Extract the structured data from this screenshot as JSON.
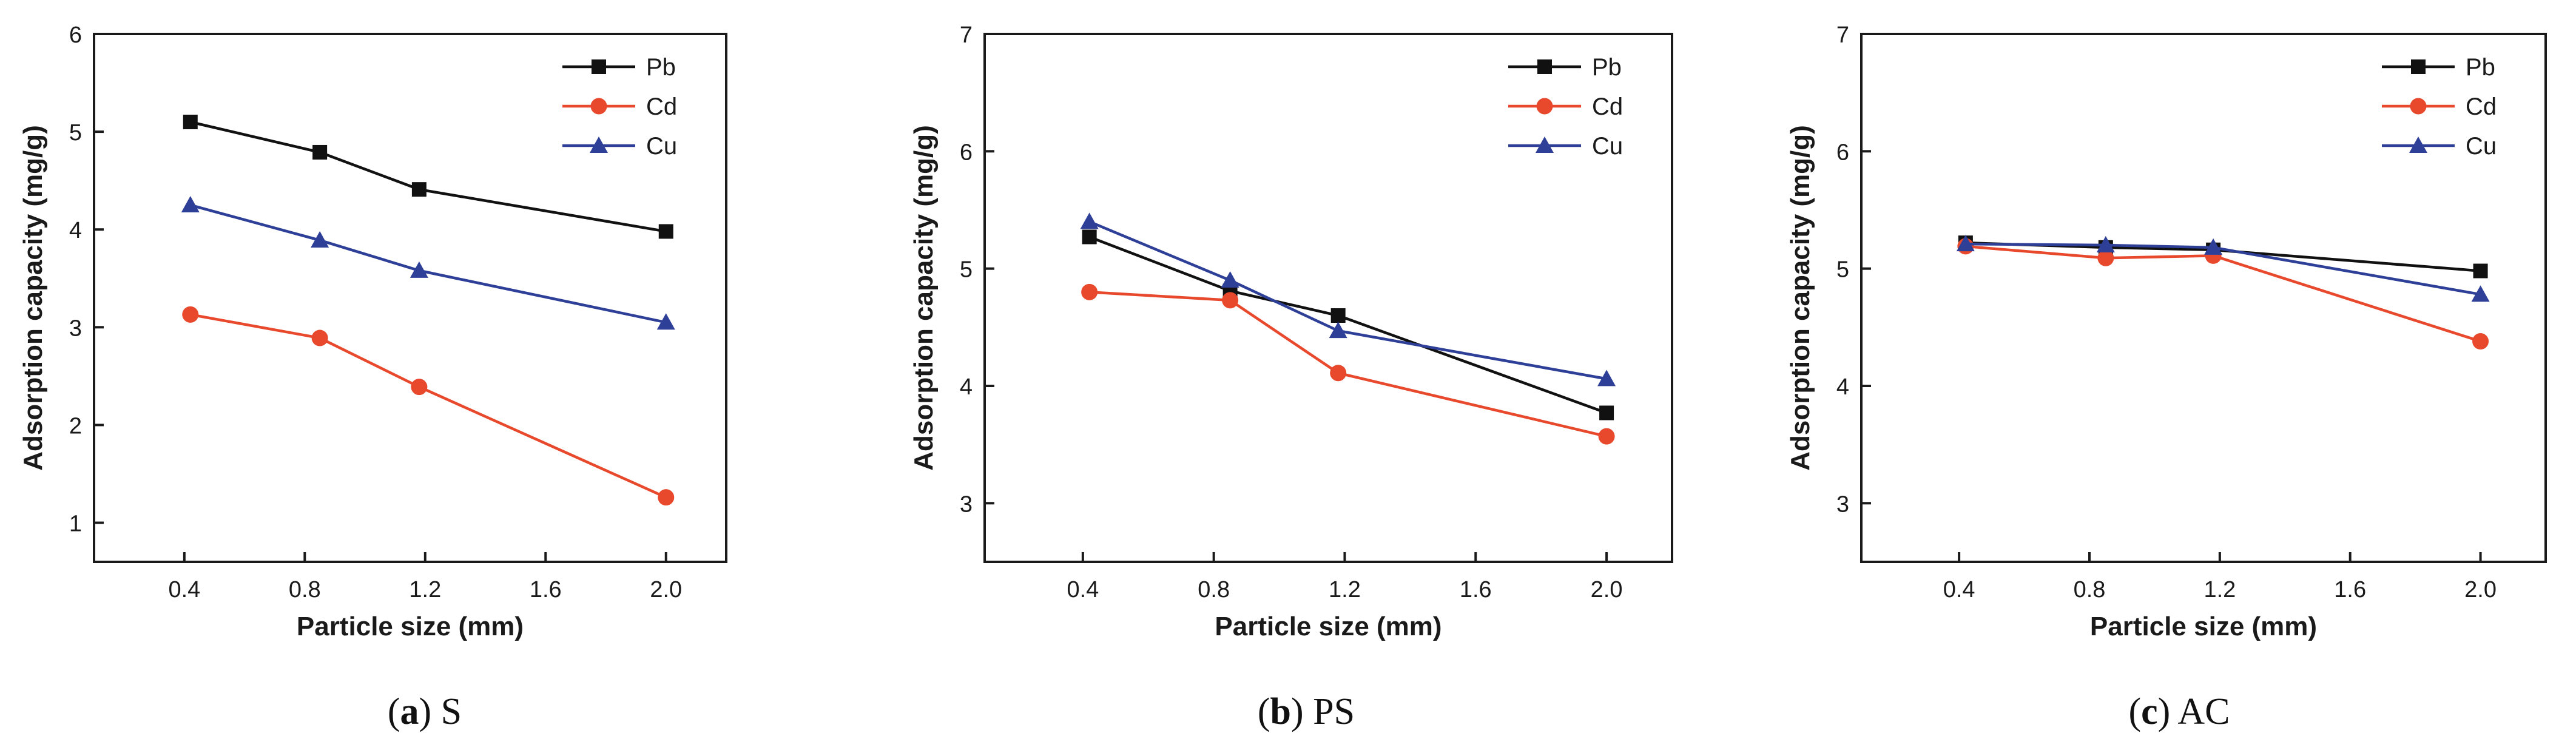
{
  "chart_data": [
    {
      "type": "line",
      "caption_letter": "a",
      "caption_text": "S",
      "xlabel": "Particle size (mm)",
      "ylabel": "Adsorption capacity (mg/g)",
      "xlim": [
        0.1,
        2.2
      ],
      "ylim": [
        0.6,
        6.0
      ],
      "xticks": [
        "0.4",
        "0.8",
        "1.2",
        "1.6",
        "2.0"
      ],
      "yticks": [
        "1",
        "2",
        "3",
        "4",
        "5",
        "6"
      ],
      "x": [
        0.42,
        0.85,
        1.18,
        2.0
      ],
      "series": [
        {
          "name": "Pb",
          "values": [
            5.1,
            4.79,
            4.41,
            3.98
          ]
        },
        {
          "name": "Cd",
          "values": [
            3.13,
            2.89,
            2.39,
            1.26
          ]
        },
        {
          "name": "Cu",
          "values": [
            4.25,
            3.89,
            3.58,
            3.05
          ]
        }
      ],
      "legend_position": "top-right"
    },
    {
      "type": "line",
      "caption_letter": "b",
      "caption_text": "PS",
      "xlabel": "Particle size (mm)",
      "ylabel": "Adsorption capacity (mg/g)",
      "xlim": [
        0.1,
        2.2
      ],
      "ylim": [
        2.5,
        7.0
      ],
      "xticks": [
        "0.4",
        "0.8",
        "1.2",
        "1.6",
        "2.0"
      ],
      "yticks": [
        "3",
        "4",
        "5",
        "6",
        "7"
      ],
      "x": [
        0.42,
        0.85,
        1.18,
        2.0
      ],
      "series": [
        {
          "name": "Pb",
          "values": [
            5.27,
            4.81,
            4.6,
            3.77
          ]
        },
        {
          "name": "Cd",
          "values": [
            4.8,
            4.73,
            4.11,
            3.57
          ]
        },
        {
          "name": "Cu",
          "values": [
            5.4,
            4.9,
            4.47,
            4.06
          ]
        }
      ],
      "legend_position": "top-right"
    },
    {
      "type": "line",
      "caption_letter": "c",
      "caption_text": "AC",
      "xlabel": "Particle size (mm)",
      "ylabel": "Adsorption capacity (mg/g)",
      "xlim": [
        0.1,
        2.2
      ],
      "ylim": [
        2.5,
        7.0
      ],
      "xticks": [
        "0.4",
        "0.8",
        "1.2",
        "1.6",
        "2.0"
      ],
      "yticks": [
        "3",
        "4",
        "5",
        "6",
        "7"
      ],
      "x": [
        0.42,
        0.85,
        1.18,
        2.0
      ],
      "series": [
        {
          "name": "Pb",
          "values": [
            5.22,
            5.18,
            5.16,
            4.98
          ]
        },
        {
          "name": "Cd",
          "values": [
            5.19,
            5.09,
            5.11,
            4.38
          ]
        },
        {
          "name": "Cu",
          "values": [
            5.21,
            5.2,
            5.18,
            4.78
          ]
        }
      ],
      "legend_position": "top-right"
    }
  ],
  "style": {
    "series_colors": {
      "Pb": "#111111",
      "Cd": "#e8492d",
      "Cu": "#2e3f98"
    },
    "series_markers": {
      "Pb": "square",
      "Cd": "circle",
      "Cu": "triangle"
    },
    "axis_color": "#1a1a1a",
    "grid": false
  }
}
